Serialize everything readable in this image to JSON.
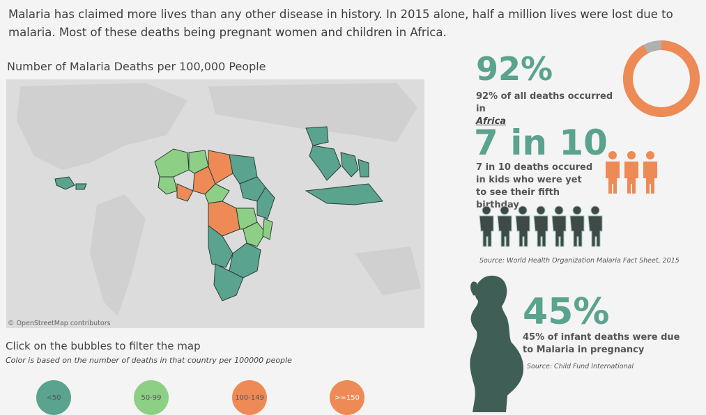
{
  "intro": {
    "text": "Malaria has claimed more lives than any other disease in history. In 2015 alone, half a million lives were lost due to malaria. Most of these deaths being pregnant women and children in Africa."
  },
  "map": {
    "title": "Number of Malaria Deaths per 100,000 People",
    "attribution": "© OpenStreetMap contributors",
    "colors": {
      "low": "#5aa38e",
      "mid": "#8dcf85",
      "high": "#ee8a55",
      "ocean": "#dcdcdc",
      "land": "#d2d2d2"
    }
  },
  "filter": {
    "title": "Click on the bubbles to filter the map",
    "subtitle": "Color is based on the number of deaths in that country per 100000 people",
    "bubbles": [
      {
        "label": "<50",
        "color": "#5aa38e"
      },
      {
        "label": "50-99",
        "color": "#8dcf85"
      },
      {
        "label": "100-149",
        "color": "#ee8a55"
      },
      {
        "label": ">=150",
        "color": "#ee8a55"
      }
    ]
  },
  "stats": {
    "africa": {
      "big": "92%",
      "text_before": "92% of all deaths occurred in",
      "link": "Africa",
      "donut_fraction": 0.92,
      "donut_color": "#ee8a55",
      "donut_rest_color": "#b0b0b0"
    },
    "kids": {
      "big": "7 in 10",
      "text": "7 in 10 deaths occured in kids who were yet to see their fifth birthday",
      "source": "Source: World Health Organization Malaria Fact Sheet, 2015",
      "icon_color_orange": "#ee8a55",
      "icon_color_dark": "#3f4a48"
    },
    "pregnancy": {
      "big": "45%",
      "text": "45% of infant deaths were due to Malaria in pregnancy",
      "source": "Source: Child Fund International",
      "silhouette_color": "#3f5e56"
    }
  }
}
